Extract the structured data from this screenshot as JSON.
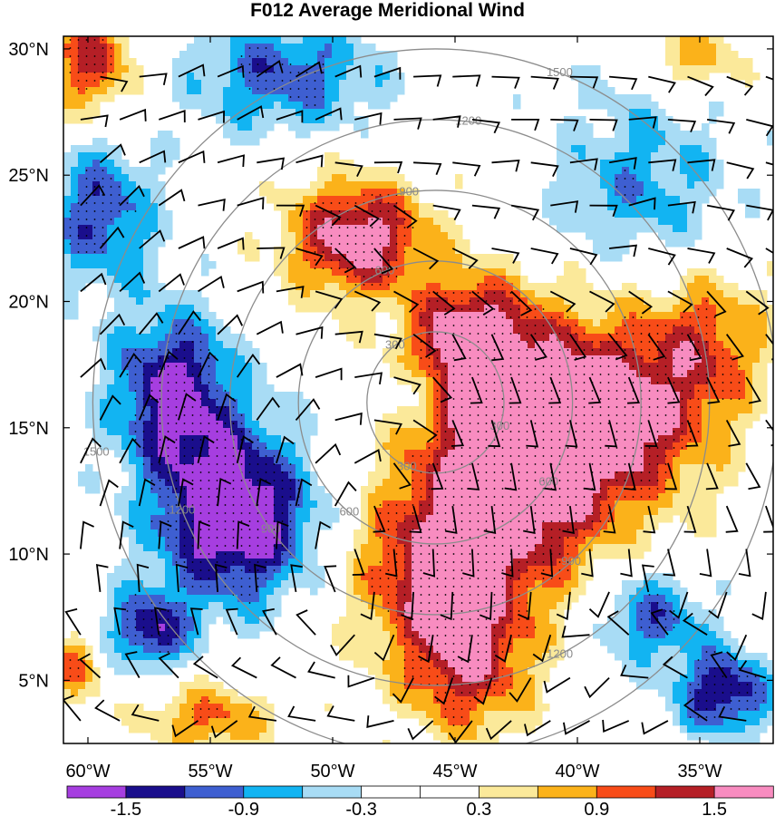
{
  "chart_data": {
    "type": "heatmap",
    "title": "F012 Average Meridional Wind",
    "xlabel": "",
    "ylabel": "",
    "x_axis": {
      "range": [
        -61,
        -32
      ],
      "ticks": [
        -60,
        -55,
        -50,
        -45,
        -40,
        -35
      ],
      "tick_labels": [
        "60°W",
        "55°W",
        "50°W",
        "45°W",
        "40°W",
        "35°W"
      ]
    },
    "y_axis": {
      "range": [
        2.5,
        30.5
      ],
      "ticks": [
        5,
        10,
        15,
        20,
        25,
        30
      ],
      "tick_labels": [
        "5°N",
        "10°N",
        "15°N",
        "20°N",
        "25°N",
        "30°N"
      ]
    },
    "colorbar": {
      "colors": [
        "#a63ee0",
        "#1a0e8c",
        "#3e5fd1",
        "#12b4f2",
        "#a8dcf5",
        "#ffffff",
        "#ffffff",
        "#fbe99a",
        "#fbb21a",
        "#f84c18",
        "#b51f26",
        "#f88cc0"
      ],
      "labels": [
        {
          "after_bin": 1,
          "text": "-1.5"
        },
        {
          "after_bin": 3,
          "text": "-0.9"
        },
        {
          "after_bin": 5,
          "text": "-0.3"
        },
        {
          "after_bin": 7,
          "text": "0.3"
        },
        {
          "after_bin": 9,
          "text": "0.9"
        },
        {
          "after_bin": 11,
          "text": "1.5"
        }
      ]
    },
    "range_rings": {
      "center": {
        "lon": -45.8,
        "lat": 16.0
      },
      "rings": [
        {
          "radius_deg": 2.8,
          "label": "300"
        },
        {
          "radius_deg": 5.6,
          "label": "600"
        },
        {
          "radius_deg": 8.4,
          "label": "900"
        },
        {
          "radius_deg": 11.2,
          "label": "1200"
        },
        {
          "radius_deg": 14.0,
          "label": "1500"
        }
      ]
    },
    "features": [
      {
        "lon": -49.0,
        "lat": 22.5,
        "sx": 2.0,
        "sy": 1.6,
        "amp": 1.8
      },
      {
        "lon": -44.5,
        "lat": 18.5,
        "sx": 1.6,
        "sy": 1.6,
        "amp": 1.5
      },
      {
        "lon": -42.5,
        "lat": 14.0,
        "sx": 2.6,
        "sy": 3.6,
        "amp": 2.1
      },
      {
        "lon": -38.0,
        "lat": 15.5,
        "sx": 2.6,
        "sy": 2.6,
        "amp": 1.5
      },
      {
        "lon": -46.0,
        "lat": 9.5,
        "sx": 2.4,
        "sy": 2.6,
        "amp": 1.3
      },
      {
        "lon": -44.5,
        "lat": 5.5,
        "sx": 1.8,
        "sy": 2.0,
        "amp": 1.2
      },
      {
        "lon": -34.5,
        "lat": 18.5,
        "sx": 1.8,
        "sy": 2.0,
        "amp": 0.9
      },
      {
        "lon": -35.5,
        "lat": 29.5,
        "sx": 2.0,
        "sy": 1.2,
        "amp": 1.3
      },
      {
        "lon": -60.0,
        "lat": 29.5,
        "sx": 1.4,
        "sy": 1.5,
        "amp": 1.3
      },
      {
        "lon": -55.0,
        "lat": 3.5,
        "sx": 1.8,
        "sy": 1.0,
        "amp": 1.0
      },
      {
        "lon": -60.5,
        "lat": 5.5,
        "sx": 0.8,
        "sy": 1.0,
        "amp": 0.9
      },
      {
        "lon": -54.0,
        "lat": 11.5,
        "sx": 2.3,
        "sy": 2.4,
        "amp": -2.0
      },
      {
        "lon": -56.5,
        "lat": 16.5,
        "sx": 1.8,
        "sy": 2.2,
        "amp": -1.6
      },
      {
        "lon": -59.5,
        "lat": 23.5,
        "sx": 1.6,
        "sy": 2.0,
        "amp": -1.2
      },
      {
        "lon": -52.0,
        "lat": 29.0,
        "sx": 2.8,
        "sy": 1.6,
        "amp": -1.1
      },
      {
        "lon": -57.5,
        "lat": 7.0,
        "sx": 1.2,
        "sy": 1.1,
        "amp": -1.4
      },
      {
        "lon": -37.5,
        "lat": 24.5,
        "sx": 2.6,
        "sy": 2.2,
        "amp": -0.8
      },
      {
        "lon": -37.0,
        "lat": 7.5,
        "sx": 1.6,
        "sy": 1.3,
        "amp": -1.1
      },
      {
        "lon": -34.0,
        "lat": 4.5,
        "sx": 1.4,
        "sy": 1.2,
        "amp": -1.5
      },
      {
        "lon": -36.0,
        "lat": 29.0,
        "sx": 2.6,
        "sy": 1.3,
        "amp": -0.7
      },
      {
        "lon": -46.5,
        "lat": 16.5,
        "sx": 0.6,
        "sy": 0.7,
        "amp": -0.7
      }
    ],
    "wind_barb_field": {
      "lon_step": 1.6,
      "lat_step": 1.7,
      "u_base": -6,
      "v_scale": 8
    },
    "stippling": {
      "threshold_abs": 0.9
    }
  }
}
